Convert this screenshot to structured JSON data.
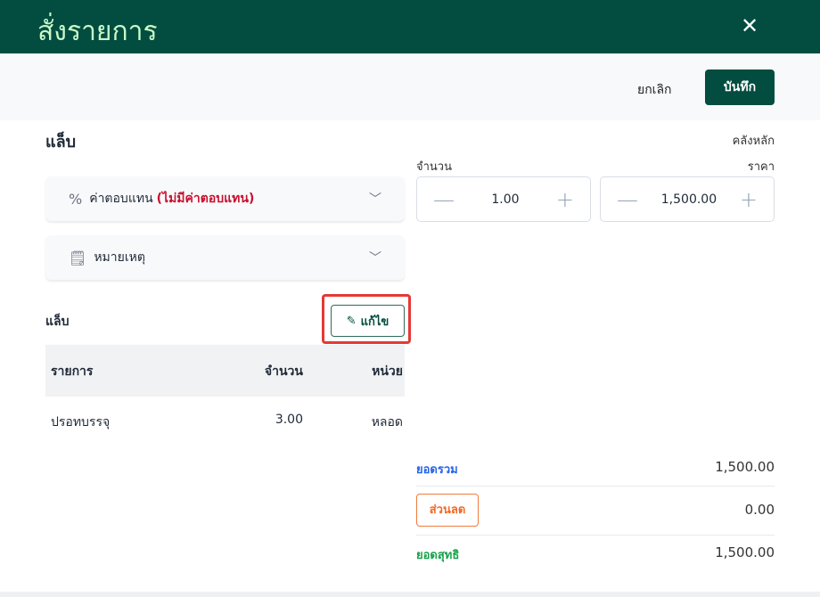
{
  "header": {
    "title": "สั่งรายการ",
    "close_icon": "close-icon"
  },
  "toolbar": {
    "cancel": "ยกเลิก",
    "save": "บันทึก"
  },
  "section_title": "แล็บ",
  "accordions": [
    {
      "icon": "percent-icon",
      "label": "ค่าตอบแทน",
      "note": "(ไม่มีค่าตอบแทน)"
    },
    {
      "icon": "note-info-icon",
      "label": "หมายเหตุ"
    }
  ],
  "lab": {
    "label": "แล็บ",
    "edit": "แก้ไข",
    "columns": [
      "รายการ",
      "จำนวน",
      "หน่วย"
    ],
    "rows": [
      {
        "item": "ปรอทบรรจุ",
        "qty": "3.00",
        "unit": "หลอด"
      }
    ]
  },
  "warehouse": "คลังหลัก",
  "quantity": {
    "label": "จำนวน",
    "value": "1.00"
  },
  "price": {
    "label": "ราคา",
    "value": "1,500.00"
  },
  "summary": {
    "total_label": "ยอดรวม",
    "total": "1,500.00",
    "discount_label": "ส่วนลด",
    "discount": "0.00",
    "net_label": "ยอดสุทธิ",
    "net": "1,500.00"
  },
  "colors": {
    "brand": "#024d3f",
    "total": "#2563eb",
    "discount": "#f06a25",
    "net": "#16a34a",
    "warning": "#c8102e"
  }
}
